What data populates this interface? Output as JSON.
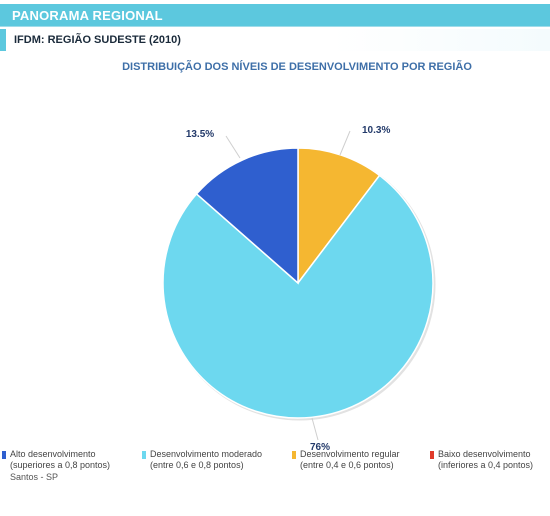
{
  "header": {
    "title": "PANORAMA REGIONAL"
  },
  "subheader": {
    "title": "IFDM: REGIÃO SUDESTE (2010)"
  },
  "chart_data": {
    "type": "pie",
    "title": "DISTRIBUIÇÃO DOS NÍVEIS DE DESENVOLVIMENTO POR REGIÃO",
    "slices": [
      {
        "label": "Regular",
        "value": 10.3,
        "display": "10.3%",
        "color": "#f5b731"
      },
      {
        "label": "Moderado",
        "value": 76,
        "display": "76%",
        "color": "#6dd8ef"
      },
      {
        "label": "Alto",
        "value": 13.5,
        "display": "13.5%",
        "color": "#2f5fcf"
      }
    ],
    "legend": [
      {
        "line1": "Alto desenvolvimento",
        "line2": "(superiores a 0,8 pontos)",
        "color": "#2f5fcf"
      },
      {
        "line1": "Desenvolvimento moderado",
        "line2": "(entre 0,6 e 0,8 pontos)",
        "color": "#6dd8ef"
      },
      {
        "line1": "Desenvolvimento regular",
        "line2": "(entre 0,4 e 0,6 pontos)",
        "color": "#f5b731"
      },
      {
        "line1": "Baixo desenvolvimento",
        "line2": "(inferiores a 0,4 pontos)",
        "color": "#e03a2a"
      }
    ]
  },
  "footer": {
    "note": "Santos - SP"
  }
}
